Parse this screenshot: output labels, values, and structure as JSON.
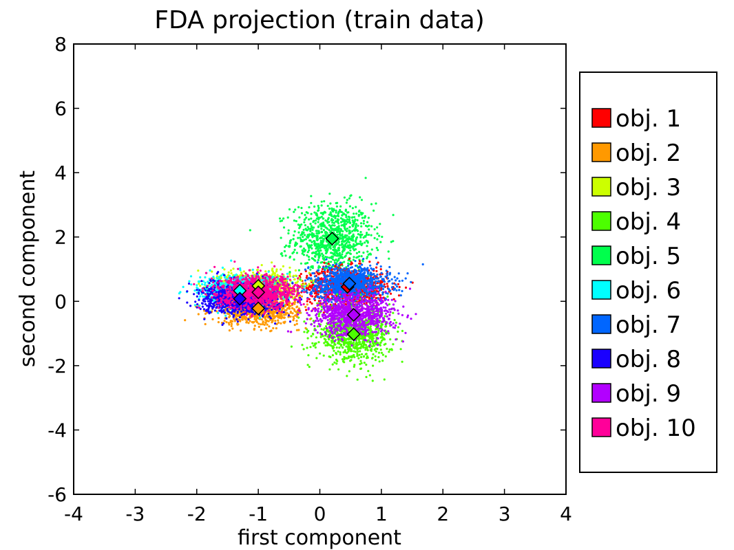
{
  "chart_data": {
    "type": "scatter",
    "title": "FDA projection (train data)",
    "xlabel": "first component",
    "ylabel": "second component",
    "xlim": [
      -4,
      4
    ],
    "ylim": [
      -6,
      8
    ],
    "xticks": [
      "-4",
      "-3",
      "-2",
      "-1",
      "0",
      "1",
      "2",
      "3",
      "4"
    ],
    "yticks": [
      "-6",
      "-4",
      "-2",
      "0",
      "2",
      "4",
      "6",
      "8"
    ],
    "grid": false,
    "legend_position": "right, outside plot",
    "series": [
      {
        "name": "obj. 1",
        "color": "#ff0000",
        "mean": [
          0.45,
          0.45
        ],
        "spread": [
          0.6,
          0.55
        ]
      },
      {
        "name": "obj. 2",
        "color": "#ff9900",
        "mean": [
          -1.0,
          -0.22
        ],
        "spread": [
          0.6,
          0.45
        ]
      },
      {
        "name": "obj. 3",
        "color": "#ccff00",
        "mean": [
          -1.0,
          0.48
        ],
        "spread": [
          0.55,
          0.4
        ]
      },
      {
        "name": "obj. 4",
        "color": "#4cff00",
        "mean": [
          0.55,
          -1.02
        ],
        "spread": [
          0.55,
          0.75
        ]
      },
      {
        "name": "obj. 5",
        "color": "#00ff4c",
        "mean": [
          0.2,
          1.95
        ],
        "spread": [
          0.6,
          1.0
        ]
      },
      {
        "name": "obj. 6",
        "color": "#00ffff",
        "mean": [
          -1.3,
          0.33
        ],
        "spread": [
          0.6,
          0.45
        ]
      },
      {
        "name": "obj. 7",
        "color": "#0066ff",
        "mean": [
          0.48,
          0.55
        ],
        "spread": [
          0.6,
          0.5
        ]
      },
      {
        "name": "obj. 8",
        "color": "#1a00ff",
        "mean": [
          -1.3,
          0.08
        ],
        "spread": [
          0.55,
          0.45
        ]
      },
      {
        "name": "obj. 9",
        "color": "#b200ff",
        "mean": [
          0.55,
          -0.42
        ],
        "spread": [
          0.6,
          0.6
        ]
      },
      {
        "name": "obj. 10",
        "color": "#ff0099",
        "mean": [
          -1.0,
          0.28
        ],
        "spread": [
          0.6,
          0.45
        ]
      }
    ]
  }
}
